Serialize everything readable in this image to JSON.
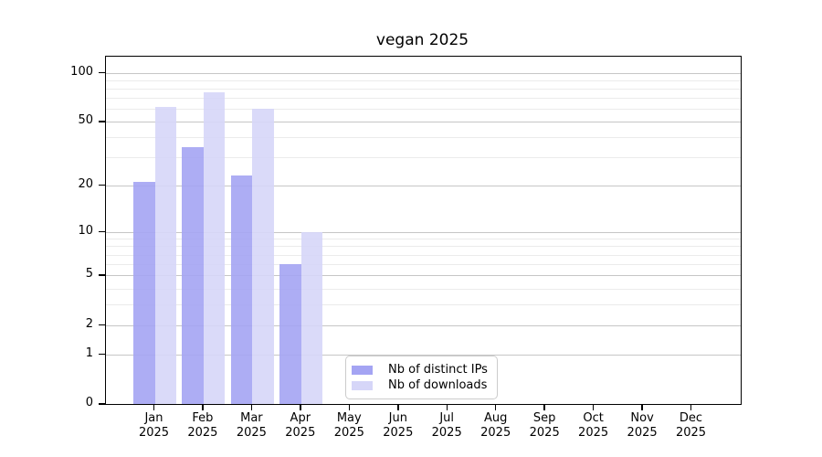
{
  "title": "vegan 2025",
  "chart_data": {
    "type": "bar",
    "title": "vegan 2025",
    "categories": [
      "Jan",
      "Feb",
      "Mar",
      "Apr",
      "May",
      "Jun",
      "Jul",
      "Aug",
      "Sep",
      "Oct",
      "Nov",
      "Dec"
    ],
    "x_tick_second_line": "2025",
    "series": [
      {
        "name": "Nb of distinct IPs",
        "color": "#a4a4f3",
        "values": [
          21,
          35,
          23,
          6,
          0,
          0,
          0,
          0,
          0,
          0,
          0,
          0
        ]
      },
      {
        "name": "Nb of downloads",
        "color": "#d6d6f8",
        "values": [
          62,
          76,
          60,
          10,
          0,
          0,
          0,
          0,
          0,
          0,
          0,
          0
        ]
      }
    ],
    "y_ticks": [
      0,
      1,
      2,
      5,
      10,
      20,
      50,
      100
    ],
    "y_major_gridlines": [
      1,
      2,
      5,
      10,
      20,
      50,
      100
    ],
    "y_scale": "log10(value+1)",
    "ylim": [
      0,
      125
    ],
    "grid": true,
    "legend_position": "inside-bottom-center",
    "xlabel": "",
    "ylabel": ""
  }
}
